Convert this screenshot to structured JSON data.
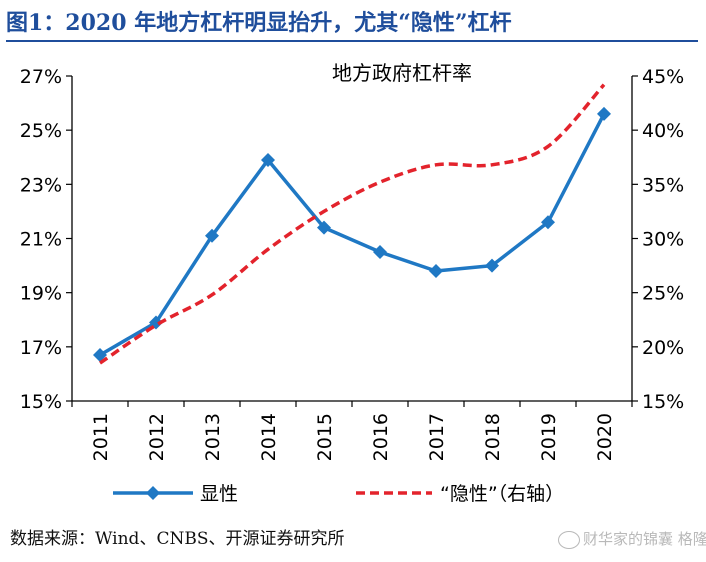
{
  "figure_title": "图1：2020 年地方杠杆明显抬升，尤其“隐性”杠杆",
  "source_note": "数据来源：Wind、CNBS、开源证券研究所",
  "watermark": "财华家的锦囊 格隆汇",
  "colors": {
    "title": "#1f4e9c",
    "explicit": "#1f78c4",
    "hidden": "#e3232c",
    "axis": "#000000"
  },
  "chart_data": {
    "type": "line",
    "title": "地方政府杠杆率",
    "categories": [
      "2011",
      "2012",
      "2013",
      "2014",
      "2015",
      "2016",
      "2017",
      "2018",
      "2019",
      "2020"
    ],
    "y_left": {
      "min": 15,
      "max": 27,
      "step": 2,
      "ticks": [
        "15%",
        "17%",
        "19%",
        "21%",
        "23%",
        "25%",
        "27%"
      ]
    },
    "y_right": {
      "min": 15,
      "max": 45,
      "step": 5,
      "ticks": [
        "15%",
        "20%",
        "25%",
        "30%",
        "35%",
        "40%",
        "45%"
      ]
    },
    "series": [
      {
        "name": "显性",
        "axis": "left",
        "style": "solid",
        "marker": "diamond",
        "color": "#1f78c4",
        "values": [
          16.7,
          17.9,
          21.1,
          23.9,
          21.4,
          20.5,
          19.8,
          20.0,
          21.6,
          25.6
        ]
      },
      {
        "name": "“隐性”（右轴）",
        "axis": "right",
        "style": "dashed",
        "marker": "none",
        "color": "#e3232c",
        "values": [
          18.5,
          22.0,
          24.8,
          29.0,
          32.5,
          35.2,
          36.8,
          36.8,
          38.5,
          44.2
        ]
      }
    ],
    "grid": false,
    "legend_position": "bottom"
  }
}
